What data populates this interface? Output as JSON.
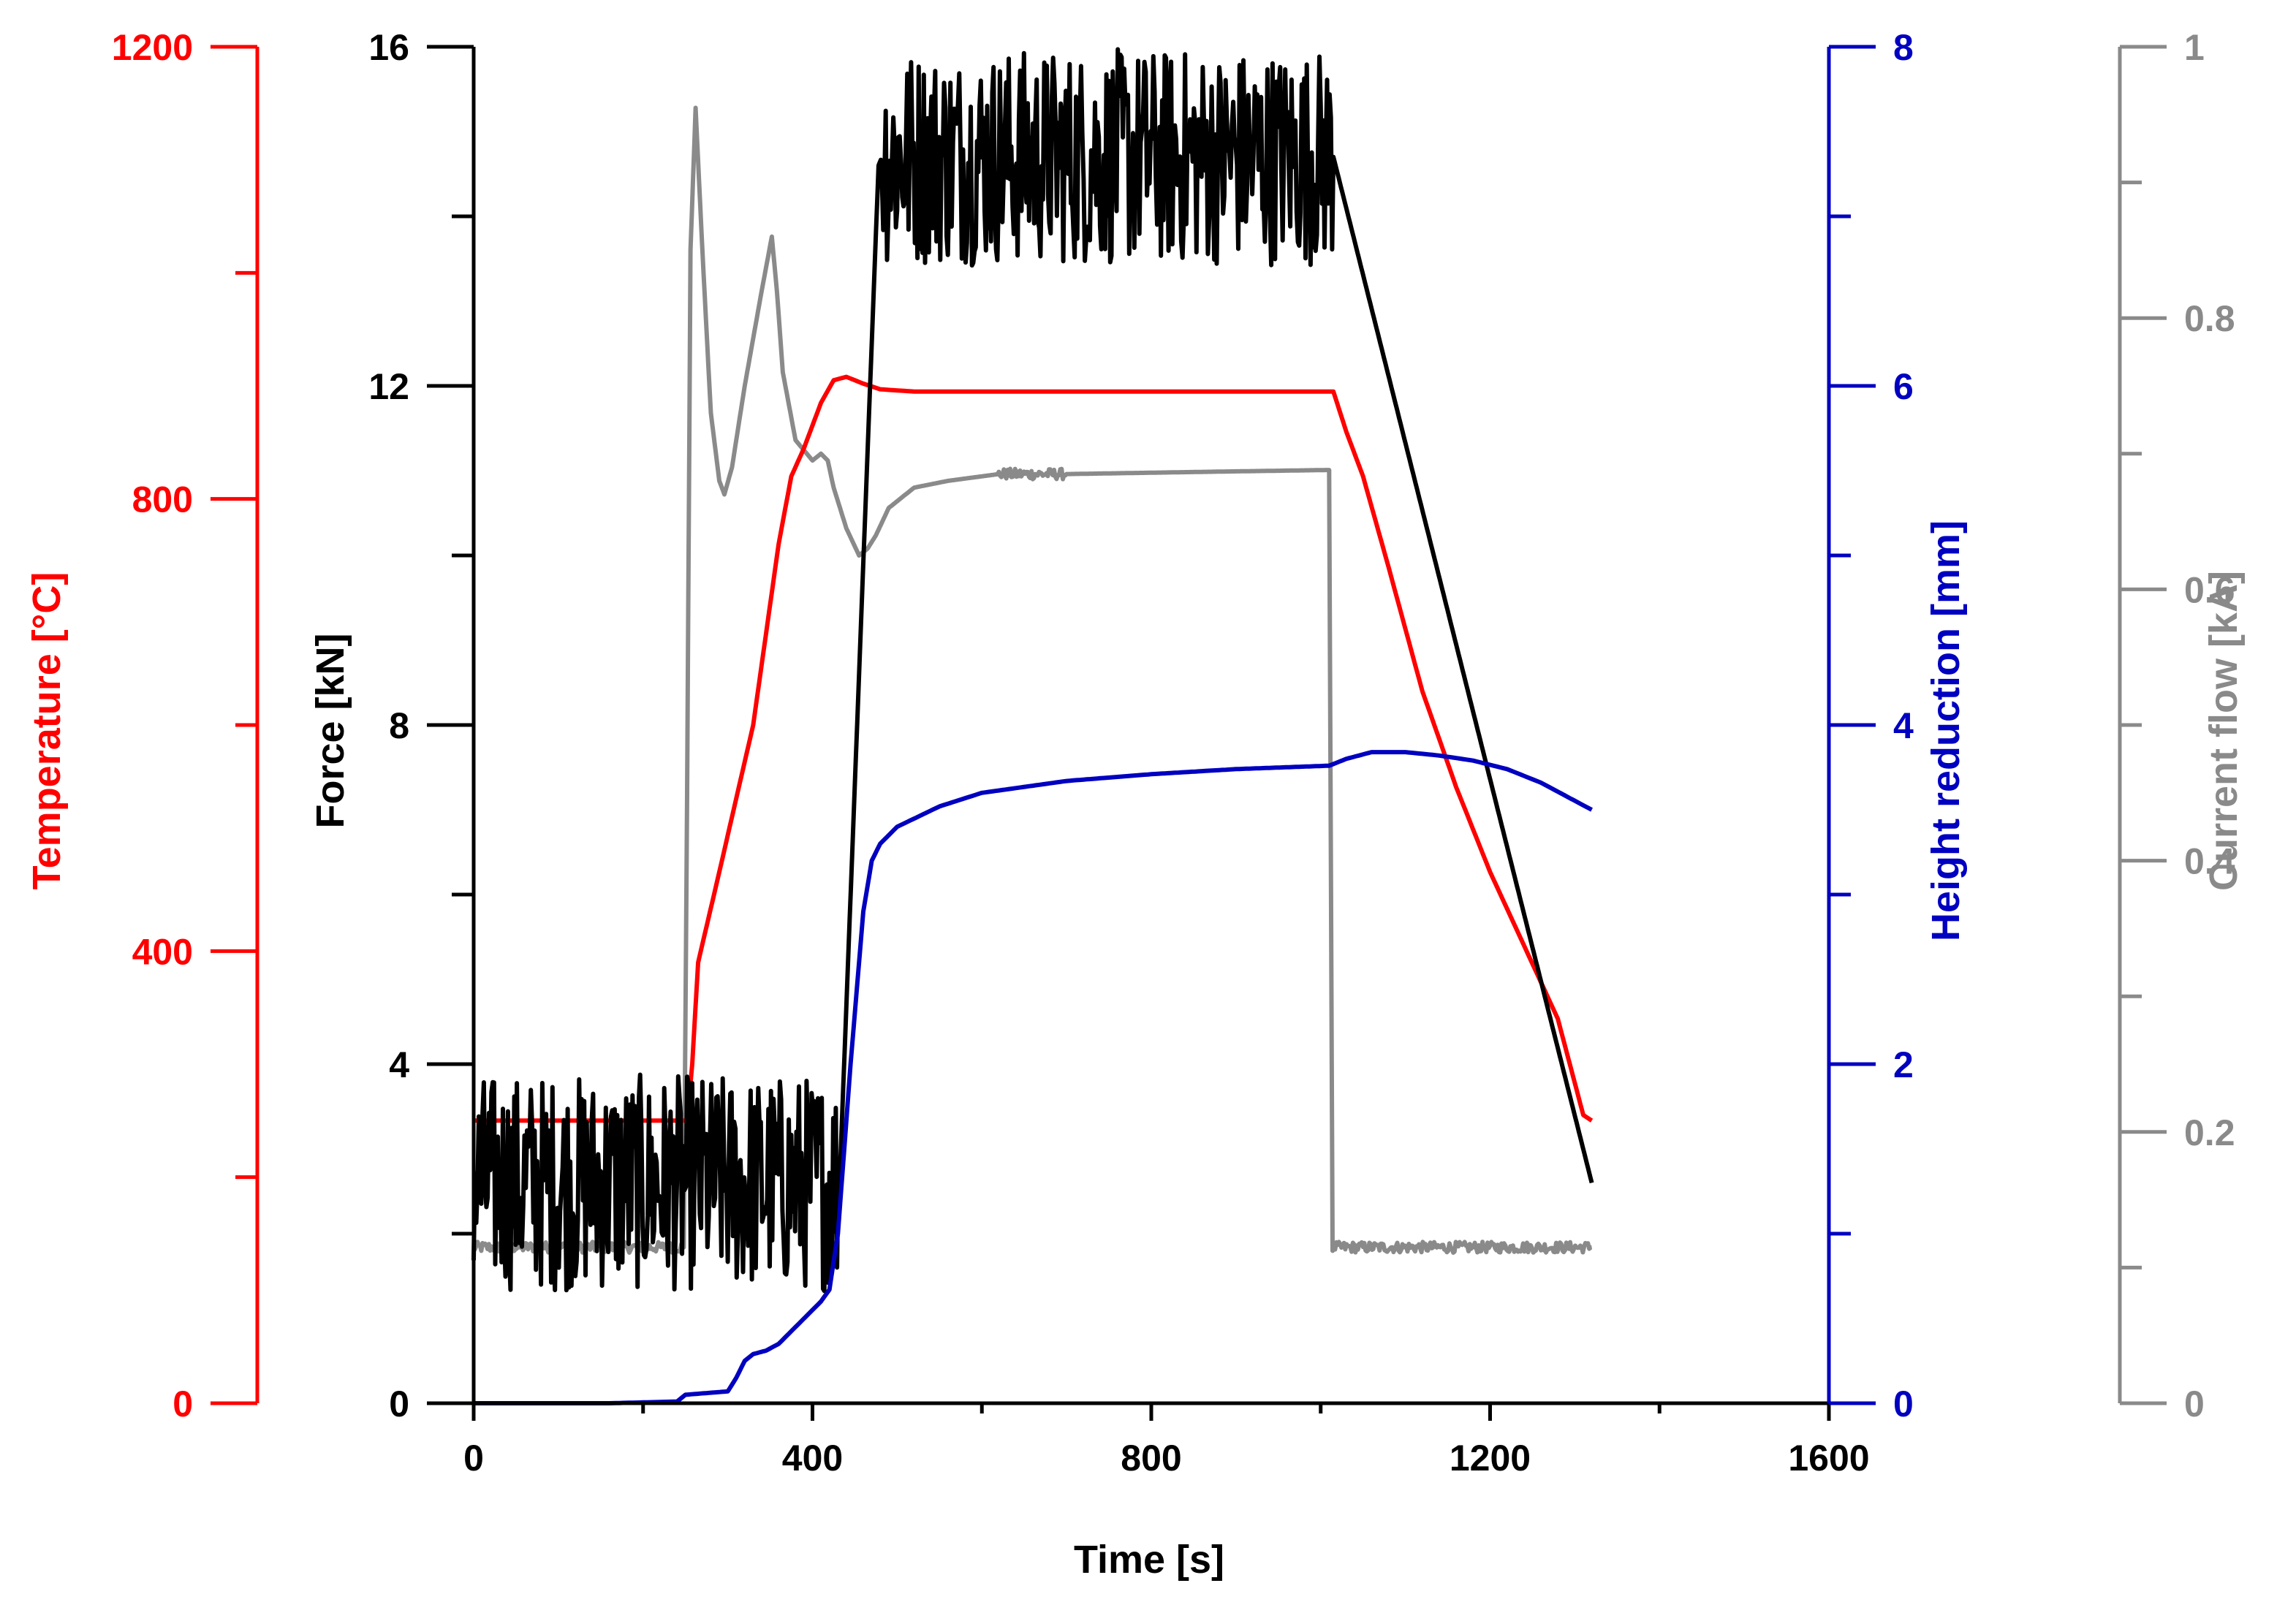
{
  "chart_data": {
    "type": "line",
    "title": "",
    "xlabel": "Time [s]",
    "xlim": [
      0,
      1600
    ],
    "xticks": [
      0,
      400,
      800,
      1200,
      1600
    ],
    "x_minor_ticks": [
      200,
      600,
      1000,
      1400
    ],
    "axes": {
      "temperature": {
        "label": "Temperature [°C]",
        "color": "#ff0000",
        "side": "left-outer",
        "range": [
          0,
          1200
        ],
        "ticks": [
          0,
          400,
          800,
          1200
        ],
        "minor_ticks": [
          200,
          600,
          1000
        ]
      },
      "force": {
        "label": "Force [kN]",
        "color": "#000000",
        "side": "left",
        "range": [
          0,
          16
        ],
        "ticks": [
          0,
          4,
          8,
          12,
          16
        ],
        "minor_ticks": [
          2,
          6,
          10,
          14
        ]
      },
      "height": {
        "label": "Height reduction [mm]",
        "color": "#0000c0",
        "side": "right",
        "range": [
          0,
          8
        ],
        "ticks": [
          0,
          2,
          4,
          6,
          8
        ],
        "minor_ticks": [
          1,
          3,
          5,
          7
        ]
      },
      "current": {
        "label": "Current flow [kA]",
        "color": "#8a8a8a",
        "side": "right-outer",
        "range": [
          0,
          1
        ],
        "ticks": [
          0,
          0.2,
          0.4,
          0.6,
          0.8,
          1
        ],
        "tick_labels": [
          "0",
          "0.2",
          "0.4",
          "0.6",
          "0.8",
          "1"
        ],
        "minor_ticks": [
          0.1,
          0.3,
          0.5,
          0.7,
          0.9
        ]
      }
    },
    "series": [
      {
        "name": "Current flow",
        "axis": "current",
        "color": "#8a8a8a",
        "noise": 0.004,
        "x": [
          0,
          248,
          252,
          256,
          262,
          270,
          280,
          290,
          296,
          305,
          320,
          340,
          352,
          358,
          365,
          380,
          400,
          410,
          418,
          425,
          440,
          455,
          465,
          475,
          490,
          520,
          560,
          620,
          700,
          800,
          900,
          1010,
          1012,
          1014,
          1320
        ],
        "y": [
          0.115,
          0.115,
          0.45,
          0.85,
          0.955,
          0.85,
          0.73,
          0.68,
          0.67,
          0.69,
          0.75,
          0.82,
          0.86,
          0.82,
          0.76,
          0.71,
          0.695,
          0.7,
          0.695,
          0.675,
          0.645,
          0.625,
          0.63,
          0.64,
          0.66,
          0.675,
          0.68,
          0.685,
          0.685,
          0.686,
          0.687,
          0.688,
          0.4,
          0.115,
          0.115
        ]
      },
      {
        "name": "Temperature",
        "axis": "temperature",
        "color": "#ff0000",
        "noise": 0,
        "x": [
          0,
          252,
          258,
          265,
          290,
          330,
          360,
          375,
          390,
          410,
          425,
          440,
          460,
          480,
          520,
          600,
          800,
          1015,
          1030,
          1050,
          1080,
          1120,
          1160,
          1200,
          1240,
          1280,
          1310,
          1320
        ],
        "y": [
          250,
          250,
          300,
          390,
          470,
          600,
          760,
          820,
          845,
          885,
          905,
          908,
          902,
          897,
          895,
          895,
          895,
          895,
          860,
          820,
          740,
          630,
          545,
          470,
          405,
          340,
          255,
          250
        ],
        "precision": 0
      },
      {
        "name": "Force",
        "axis": "force",
        "color": "#000000",
        "noise": 0.08,
        "x": [
          0,
          420,
          432,
          478,
          482,
          1015,
          1320
        ],
        "y": [
          2.6,
          2.6,
          2.6,
          14.6,
          14.7,
          14.7,
          2.6
        ],
        "precision": 1
      },
      {
        "name": "Height reduction",
        "axis": "height",
        "color": "#0000c0",
        "noise": 0,
        "x": [
          0,
          160,
          240,
          250,
          275,
          300,
          310,
          320,
          330,
          345,
          360,
          380,
          400,
          410,
          420,
          430,
          445,
          460,
          470,
          480,
          500,
          550,
          600,
          700,
          800,
          900,
          1010,
          1030,
          1060,
          1100,
          1140,
          1180,
          1220,
          1260,
          1320
        ],
        "y": [
          0,
          0,
          0.01,
          0.05,
          0.06,
          0.07,
          0.15,
          0.25,
          0.29,
          0.31,
          0.35,
          0.45,
          0.55,
          0.6,
          0.67,
          1.0,
          2.0,
          2.9,
          3.2,
          3.3,
          3.4,
          3.52,
          3.6,
          3.67,
          3.71,
          3.74,
          3.76,
          3.8,
          3.84,
          3.84,
          3.82,
          3.79,
          3.74,
          3.66,
          3.5
        ],
        "precision": 2
      }
    ]
  }
}
